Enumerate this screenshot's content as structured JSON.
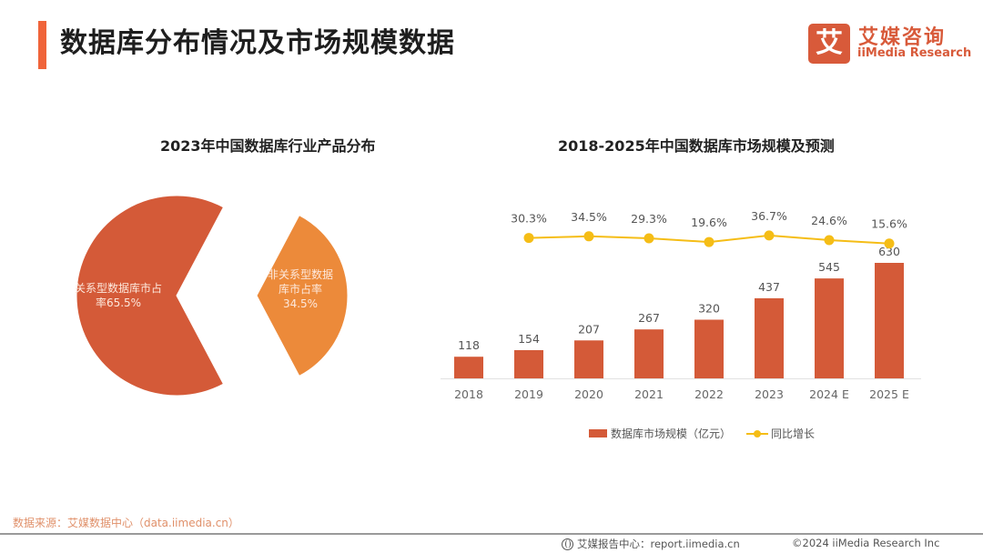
{
  "header": {
    "title": "数据库分布情况及市场规模数据",
    "logo": {
      "mark": "艾",
      "name_cn": "艾媒咨询",
      "name_en": "iiMedia Research"
    },
    "accent_color": "#f0643a"
  },
  "chart_data": [
    {
      "type": "pie",
      "title": "2023年中国数据库行业产品分布",
      "slices": [
        {
          "label": "关系型数据库市占率",
          "display": [
            "关系型数据库市占",
            "率65.5%"
          ],
          "value": 65.5,
          "color": "#d45a38"
        },
        {
          "label": "非关系型数据库市占率",
          "display": [
            "非关系型数据",
            "库市占率",
            "34.5%"
          ],
          "value": 34.5,
          "color": "#ec8a3a"
        }
      ],
      "exploded": true
    },
    {
      "type": "bar",
      "title": "2018-2025年中国数据库市场规模及预测",
      "categories": [
        "2018",
        "2019",
        "2020",
        "2021",
        "2022",
        "2023",
        "2024 E",
        "2025 E"
      ],
      "series": [
        {
          "name": "数据库市场规模（亿元）",
          "type": "bar",
          "values": [
            118,
            154,
            207,
            267,
            320,
            437,
            545,
            630
          ],
          "labels": [
            "118",
            "154",
            "207",
            "267",
            "320",
            "437",
            "545",
            "630"
          ],
          "color": "#d45a38"
        },
        {
          "name": "同比增长",
          "type": "line",
          "values": [
            30.3,
            34.5,
            29.3,
            19.6,
            36.7,
            24.6,
            15.6
          ],
          "labels": [
            "30.3%",
            "34.5%",
            "29.3%",
            "19.6%",
            "36.7%",
            "24.6%",
            "15.6%"
          ],
          "color": "#f5bd16",
          "note": "line points aligned with 2019–2025 E"
        }
      ],
      "legend": "bottom",
      "grid": false
    }
  ],
  "footer": {
    "source": "数据来源：艾媒数据中心（data.iimedia.cn）",
    "report_center": "艾媒报告中心：report.iimedia.cn",
    "copyright": "©2024  iiMedia Research  Inc"
  }
}
